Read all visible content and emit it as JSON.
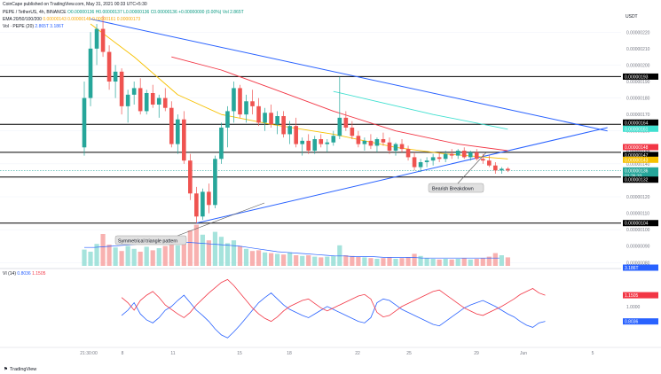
{
  "header": {
    "published_by": "CoinCape published on TradingView.com, May 31, 2021 00:33 UTC+5:30",
    "symbol_line": "PEPE / TetherUS, 4h, BINANCE",
    "ohlc": "O0.00000136 H0.00000137 L0.00000136 C0.00000136 +0.00000000 (0.00%)",
    "vol_ma": "Vol 2.865T",
    "ema_line": "EMA 20/50/100/200",
    "ema_values": "0.00000143 0.00000148 0.00000161 0.00000173",
    "vol_line": "Vol · PEPE (20)",
    "vol_values": "2.865T 3.186T",
    "quote_unit": "USDT"
  },
  "vi_header": {
    "label": "VI (14)",
    "plus": "0.8036",
    "minus": "1.1505"
  },
  "annotations": {
    "triangle": "Symmetrical triangle pattern",
    "breakdown": "Bearish Breakdown"
  },
  "footer": {
    "brand": "TradingView"
  },
  "colors": {
    "bull": "#26a69a",
    "bear": "#ef5350",
    "ema20": "#f7c100",
    "ema50": "#f23645",
    "ema100": "#40e0d0",
    "trendline": "#2962ff",
    "level": "#000000",
    "vi_plus": "#2962ff",
    "vi_minus": "#f23645"
  },
  "chart_data": {
    "type": "candlestick",
    "price_axis": {
      "labels": [
        "0.00000220",
        "0.00000210",
        "0.00000200",
        "0.00000193",
        "0.00000190",
        "0.00000180",
        "0.00000170",
        "0.00000164",
        "0.00000161",
        "0.00000160",
        "0.00000148",
        "0.00000147",
        "0.00000143",
        "0.00000140",
        "0.00000136",
        "0.00000132",
        "0.00000130",
        "0.00000120",
        "0.00000110",
        "0.00000104",
        "0.00000100",
        "0.00000090",
        "0.00000080"
      ],
      "ylim": [
        7.8e-07,
        2.32e-06
      ]
    },
    "horizontal_levels": [
      1.93e-06,
      1.64e-06,
      1.47e-06,
      1.32e-06,
      1.04e-06
    ],
    "highlighted_labels": [
      {
        "text": "0.00000193",
        "color": "#000000"
      },
      {
        "text": "0.00000164",
        "color": "#000000"
      },
      {
        "text": "0.00000161",
        "color": "#40e0d0"
      },
      {
        "text": "0.00000148",
        "color": "#f23645"
      },
      {
        "text": "0.00000147",
        "color": "#000000"
      },
      {
        "text": "0.00000143",
        "color": "#f7c100"
      },
      {
        "text": "0.00000136",
        "color": "#26a69a"
      },
      {
        "text": "01:26:33",
        "color": "#26a69a"
      },
      {
        "text": "0.00000132",
        "color": "#000000"
      },
      {
        "text": "0.00000104",
        "color": "#000000"
      },
      {
        "text": "3.186T",
        "color": "#2962ff"
      },
      {
        "text": "1.1505",
        "color": "#f23645"
      },
      {
        "text": "0.8036",
        "color": "#2962ff"
      }
    ],
    "x_axis": {
      "labels": [
        "21:30:00",
        "8",
        "11",
        "15",
        "18",
        "22",
        "25",
        "29",
        "Jun",
        "5"
      ]
    },
    "vi_axis": {
      "labels": [
        "1.0000"
      ]
    },
    "candles": [
      [
        1.5e-06,
        1.9e-06,
        1.45e-06,
        1.8e-06
      ],
      [
        1.8e-06,
        2.2e-06,
        1.75e-06,
        2.1e-06
      ],
      [
        2.1e-06,
        2.25e-06,
        2e-06,
        2.22e-06
      ],
      [
        2.22e-06,
        2.3e-06,
        2.05e-06,
        2.08e-06
      ],
      [
        2.08e-06,
        2.12e-06,
        1.85e-06,
        1.9e-06
      ],
      [
        1.9e-06,
        2e-06,
        1.8e-06,
        1.96e-06
      ],
      [
        1.96e-06,
        1.98e-06,
        1.7e-06,
        1.75e-06
      ],
      [
        1.75e-06,
        1.85e-06,
        1.65e-06,
        1.82e-06
      ],
      [
        1.82e-06,
        1.9e-06,
        1.76e-06,
        1.86e-06
      ],
      [
        1.86e-06,
        1.92e-06,
        1.7e-06,
        1.72e-06
      ],
      [
        1.72e-06,
        1.85e-06,
        1.7e-06,
        1.83e-06
      ],
      [
        1.83e-06,
        1.88e-06,
        1.74e-06,
        1.76e-06
      ],
      [
        1.76e-06,
        1.82e-06,
        1.68e-06,
        1.8e-06
      ],
      [
        1.8e-06,
        1.86e-06,
        1.72e-06,
        1.74e-06
      ],
      [
        1.74e-06,
        1.78e-06,
        1.5e-06,
        1.52e-06
      ],
      [
        1.52e-06,
        1.7e-06,
        1.46e-06,
        1.67e-06
      ],
      [
        1.67e-06,
        1.72e-06,
        1.4e-06,
        1.42e-06
      ],
      [
        1.42e-06,
        1.46e-06,
        1.18e-06,
        1.22e-06
      ],
      [
        1.22e-06,
        1.26e-06,
        1.04e-06,
        1.08e-06
      ],
      [
        1.08e-06,
        1.25e-06,
        1.06e-06,
        1.23e-06
      ],
      [
        1.23e-06,
        1.28e-06,
        1.1e-06,
        1.15e-06
      ],
      [
        1.15e-06,
        1.45e-06,
        1.13e-06,
        1.43e-06
      ],
      [
        1.43e-06,
        1.65e-06,
        1.4e-06,
        1.62e-06
      ],
      [
        1.62e-06,
        1.75e-06,
        1.5e-06,
        1.72e-06
      ],
      [
        1.72e-06,
        1.9e-06,
        1.65e-06,
        1.86e-06
      ],
      [
        1.86e-06,
        1.88e-06,
        1.68e-06,
        1.7e-06
      ],
      [
        1.7e-06,
        1.82e-06,
        1.65e-06,
        1.78e-06
      ],
      [
        1.78e-06,
        1.85e-06,
        1.7e-06,
        1.75e-06
      ],
      [
        1.75e-06,
        1.8e-06,
        1.63e-06,
        1.65e-06
      ],
      [
        1.65e-06,
        1.74e-06,
        1.6e-06,
        1.71e-06
      ],
      [
        1.71e-06,
        1.76e-06,
        1.62e-06,
        1.64e-06
      ],
      [
        1.64e-06,
        1.72e-06,
        1.58e-06,
        1.69e-06
      ],
      [
        1.69e-06,
        1.72e-06,
        1.56e-06,
        1.58e-06
      ],
      [
        1.58e-06,
        1.66e-06,
        1.52e-06,
        1.63e-06
      ],
      [
        1.63e-06,
        1.68e-06,
        1.5e-06,
        1.52e-06
      ],
      [
        1.52e-06,
        1.56e-06,
        1.45e-06,
        1.54e-06
      ],
      [
        1.54e-06,
        1.58e-06,
        1.46e-06,
        1.48e-06
      ],
      [
        1.48e-06,
        1.57e-06,
        1.46e-06,
        1.55e-06
      ],
      [
        1.55e-06,
        1.58e-06,
        1.5e-06,
        1.52e-06
      ],
      [
        1.52e-06,
        1.55e-06,
        1.47e-06,
        1.53e-06
      ],
      [
        1.53e-06,
        1.6e-06,
        1.51e-06,
        1.57e-06
      ],
      [
        1.57e-06,
        1.93e-06,
        1.55e-06,
        1.68e-06
      ],
      [
        1.68e-06,
        1.72e-06,
        1.6e-06,
        1.62e-06
      ],
      [
        1.62e-06,
        1.66e-06,
        1.55e-06,
        1.57e-06
      ],
      [
        1.57e-06,
        1.6e-06,
        1.5e-06,
        1.52e-06
      ],
      [
        1.52e-06,
        1.56e-06,
        1.48e-06,
        1.54e-06
      ],
      [
        1.54e-06,
        1.58e-06,
        1.49e-06,
        1.51e-06
      ],
      [
        1.51e-06,
        1.56e-06,
        1.47e-06,
        1.55e-06
      ],
      [
        1.55e-06,
        1.59e-06,
        1.51e-06,
        1.53e-06
      ],
      [
        1.53e-06,
        1.56e-06,
        1.46e-06,
        1.48e-06
      ],
      [
        1.48e-06,
        1.53e-06,
        1.45e-06,
        1.52e-06
      ],
      [
        1.52e-06,
        1.55e-06,
        1.47e-06,
        1.49e-06
      ],
      [
        1.49e-06,
        1.51e-06,
        1.42e-06,
        1.44e-06
      ],
      [
        1.44e-06,
        1.47e-06,
        1.36e-06,
        1.38e-06
      ],
      [
        1.38e-06,
        1.43e-06,
        1.35e-06,
        1.41e-06
      ],
      [
        1.41e-06,
        1.44e-06,
        1.38e-06,
        1.42e-06
      ],
      [
        1.42e-06,
        1.46e-06,
        1.39e-06,
        1.44e-06
      ],
      [
        1.44e-06,
        1.47e-06,
        1.41e-06,
        1.43e-06
      ],
      [
        1.43e-06,
        1.48e-06,
        1.41e-06,
        1.46e-06
      ],
      [
        1.46e-06,
        1.49e-06,
        1.43e-06,
        1.45e-06
      ],
      [
        1.45e-06,
        1.49e-06,
        1.43e-06,
        1.48e-06
      ],
      [
        1.48e-06,
        1.5e-06,
        1.43e-06,
        1.44e-06
      ],
      [
        1.44e-06,
        1.48e-06,
        1.42e-06,
        1.47e-06
      ],
      [
        1.47e-06,
        1.49e-06,
        1.42e-06,
        1.43e-06
      ],
      [
        1.43e-06,
        1.46e-06,
        1.4e-06,
        1.42e-06
      ],
      [
        1.42e-06,
        1.45e-06,
        1.38e-06,
        1.39e-06
      ],
      [
        1.39e-06,
        1.41e-06,
        1.34e-06,
        1.36e-06
      ],
      [
        1.36e-06,
        1.38e-06,
        1.34e-06,
        1.37e-06
      ],
      [
        1.37e-06,
        1.38e-06,
        1.35e-06,
        1.36e-06
      ]
    ],
    "ema": [
      {
        "name": "EMA 20",
        "color": "#f7c100",
        "points": [
          [
            1,
            2.25e-06
          ],
          [
            8,
            2.05e-06
          ],
          [
            15,
            1.82e-06
          ],
          [
            22,
            1.7e-06
          ],
          [
            30,
            1.64e-06
          ],
          [
            40,
            1.58e-06
          ],
          [
            50,
            1.5e-06
          ],
          [
            58,
            1.46e-06
          ],
          [
            68,
            1.43e-06
          ]
        ]
      },
      {
        "name": "EMA 50",
        "color": "#f23645",
        "points": [
          [
            14,
            2.05e-06
          ],
          [
            22,
            1.97e-06
          ],
          [
            30,
            1.86e-06
          ],
          [
            40,
            1.72e-06
          ],
          [
            50,
            1.6e-06
          ],
          [
            60,
            1.52e-06
          ],
          [
            68,
            1.48e-06
          ]
        ]
      },
      {
        "name": "EMA 100",
        "color": "#40e0d0",
        "points": [
          [
            40,
            1.84e-06
          ],
          [
            48,
            1.77e-06
          ],
          [
            56,
            1.7e-06
          ],
          [
            68,
            1.61e-06
          ]
        ]
      }
    ],
    "trendlines": [
      {
        "name": "upper",
        "from": [
          1,
          2.28e-06
        ],
        "to": [
          84,
          1.6e-06
        ]
      },
      {
        "name": "lower",
        "from": [
          18,
          1.04e-06
        ],
        "to": [
          84,
          1.62e-06
        ]
      }
    ],
    "volume": [
      2.3,
      2.0,
      3.1,
      4.5,
      3.0,
      2.6,
      2.1,
      2.8,
      2.4,
      2.0,
      2.7,
      2.2,
      2.5,
      2.8,
      3.6,
      2.9,
      4.2,
      5.0,
      5.8,
      4.4,
      3.6,
      4.8,
      4.1,
      3.2,
      3.6,
      2.8,
      2.4,
      2.1,
      2.2,
      1.9,
      1.8,
      1.7,
      1.6,
      1.9,
      1.5,
      1.4,
      1.5,
      1.3,
      1.2,
      1.3,
      1.4,
      2.9,
      1.5,
      1.4,
      1.3,
      1.2,
      1.1,
      1.0,
      1.1,
      1.2,
      1.0,
      1.1,
      1.2,
      1.7,
      1.4,
      1.1,
      1.0,
      0.9,
      1.0,
      0.9,
      1.0,
      1.1,
      0.9,
      1.0,
      1.1,
      1.3,
      1.8,
      1.5,
      1.2
    ],
    "volume_ma": [
      2.6,
      2.6,
      2.7,
      2.8,
      2.9,
      3.0,
      3.1,
      3.2,
      3.3,
      3.3,
      3.3,
      3.3,
      3.2,
      3.1,
      3.0,
      2.9,
      2.8,
      2.6,
      2.4,
      2.2,
      2.0,
      1.9,
      1.8,
      1.7,
      1.6,
      1.5,
      1.4,
      1.4,
      1.3,
      1.3,
      1.3,
      1.2,
      1.2,
      1.2,
      1.2,
      1.1,
      1.1,
      1.1,
      1.1,
      1.1,
      1.1,
      1.1,
      1.1,
      1.1
    ],
    "vi_plus": [
      0.88,
      0.95,
      1.05,
      0.9,
      0.82,
      0.78,
      0.85,
      0.95,
      1.0,
      1.08,
      1.15,
      1.05,
      0.95,
      0.88,
      0.8,
      0.7,
      0.62,
      0.58,
      0.66,
      0.75,
      0.85,
      0.95,
      1.05,
      1.12,
      1.18,
      1.1,
      1.02,
      0.96,
      0.92,
      0.88,
      0.85,
      0.9,
      0.95,
      1.0,
      0.96,
      0.92,
      0.88,
      0.84,
      0.8,
      0.78,
      0.85,
      1.05,
      1.1,
      1.08,
      1.02,
      0.96,
      0.92,
      0.88,
      0.84,
      0.8,
      0.76,
      0.74,
      0.8,
      0.86,
      0.92,
      0.98,
      1.02,
      1.05,
      1.08,
      1.04,
      1.0,
      0.95,
      0.9,
      0.86,
      0.8,
      0.75,
      0.72,
      0.78,
      0.8
    ],
    "vi_minus": [
      1.12,
      1.05,
      0.95,
      1.08,
      1.15,
      1.2,
      1.12,
      1.02,
      0.96,
      0.9,
      0.85,
      0.92,
      1.02,
      1.1,
      1.18,
      1.25,
      1.32,
      1.36,
      1.28,
      1.18,
      1.08,
      0.98,
      0.9,
      0.84,
      0.8,
      0.86,
      0.94,
      1.0,
      1.04,
      1.08,
      1.1,
      1.04,
      0.98,
      0.94,
      0.98,
      1.02,
      1.06,
      1.1,
      1.14,
      1.16,
      1.1,
      0.92,
      0.86,
      0.88,
      0.94,
      1.0,
      1.04,
      1.08,
      1.12,
      1.16,
      1.2,
      1.22,
      1.16,
      1.1,
      1.04,
      0.98,
      0.94,
      0.9,
      0.88,
      0.92,
      0.96,
      1.0,
      1.05,
      1.1,
      1.16,
      1.2,
      1.24,
      1.18,
      1.15
    ]
  }
}
